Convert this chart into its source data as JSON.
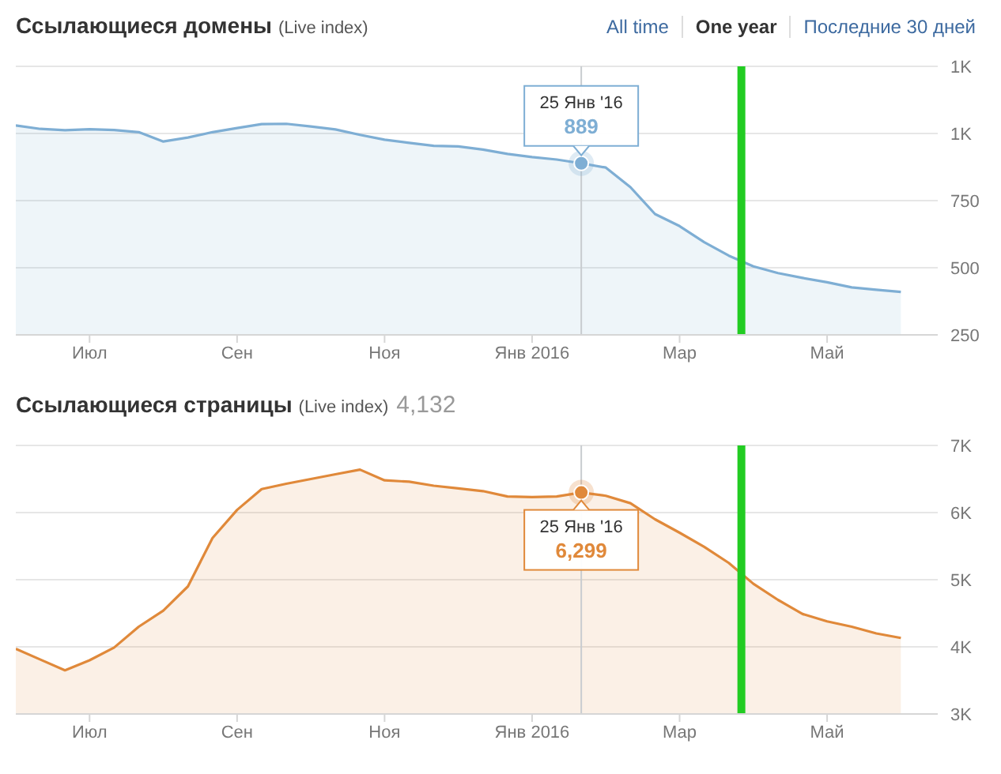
{
  "chart_data": [
    {
      "type": "area",
      "title": "Ссылающиеся домены",
      "subtitle": "(Live index)",
      "annotations": [
        "All time",
        "One year",
        "Последние 30 дней",
        {
          "text": "25 Янв '16",
          "y": 889
        },
        {
          "text": "889",
          "y": 889
        }
      ],
      "categories": [
        null,
        null,
        null,
        "Июл",
        null,
        null,
        null,
        null,
        null,
        "Сен",
        null,
        null,
        null,
        null,
        null,
        "Ноя",
        null,
        null,
        null,
        null,
        null,
        "Янв 2016",
        null,
        null,
        null,
        null,
        null,
        "Мар",
        null,
        null,
        null,
        null,
        null,
        "Май",
        null,
        null,
        null,
        null
      ],
      "series": [
        {
          "color": "#7eaed4",
          "values": [
            1030,
            1017,
            1012,
            1016,
            1013,
            1005,
            970,
            985,
            1005,
            1020,
            1035,
            1036,
            1026,
            1015,
            995,
            977,
            965,
            954,
            952,
            940,
            924,
            912,
            903,
            889,
            873,
            800,
            700,
            655,
            595,
            545,
            505,
            480,
            462,
            446,
            427,
            418,
            410,
            null
          ]
        }
      ],
      "ylim": [
        250,
        1250
      ],
      "yticks": [
        {
          "value": 250,
          "label": "250"
        },
        {
          "value": 500,
          "label": "500"
        },
        {
          "value": 750,
          "label": "750"
        },
        {
          "value": 1000,
          "label": "1K"
        },
        {
          "value": 1250,
          "label": "1K"
        }
      ],
      "grid": "y"
    },
    {
      "type": "area",
      "title": "Ссылающиеся страницы",
      "subtitle": "(Live index)",
      "annotations": [
        "4,132",
        {
          "text": "25 Янв '16",
          "y": 6299
        },
        {
          "text": "6,299",
          "y": 6299
        }
      ],
      "categories": [
        null,
        null,
        null,
        "Июл",
        null,
        null,
        null,
        null,
        null,
        "Сен",
        null,
        null,
        null,
        null,
        null,
        "Ноя",
        null,
        null,
        null,
        null,
        null,
        "Янв 2016",
        null,
        null,
        null,
        null,
        null,
        "Мар",
        null,
        null,
        null,
        null,
        null,
        "Май",
        null,
        null,
        null,
        null
      ],
      "series": [
        {
          "color": "#e0893a",
          "values": [
            3970,
            3810,
            3650,
            3800,
            3990,
            4300,
            4540,
            4900,
            5620,
            6040,
            6350,
            6430,
            6500,
            6570,
            6640,
            6480,
            6460,
            6400,
            6360,
            6320,
            6240,
            6230,
            6240,
            6299,
            6250,
            6140,
            5900,
            5700,
            5490,
            5250,
            4940,
            4700,
            4490,
            4380,
            4300,
            4200,
            4132,
            null
          ]
        }
      ],
      "ylim": [
        3000,
        7000
      ],
      "yticks": [
        {
          "value": 3000,
          "label": "3K"
        },
        {
          "value": 4000,
          "label": "4K"
        },
        {
          "value": 5000,
          "label": "5K"
        },
        {
          "value": 6000,
          "label": "6K"
        },
        {
          "value": 7000,
          "label": "7K"
        }
      ],
      "grid": "y"
    }
  ]
}
